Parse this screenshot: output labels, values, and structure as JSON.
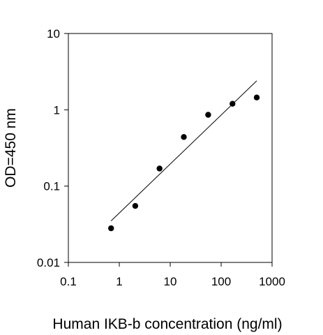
{
  "chart_data": {
    "type": "scatter",
    "title": "",
    "xlabel": "Human IKB-b concentration (ng/ml)",
    "ylabel": "OD=450 nm",
    "x_scale": "log",
    "y_scale": "log",
    "xlim": [
      0.1,
      1000
    ],
    "ylim": [
      0.01,
      10
    ],
    "x_ticks": [
      0.1,
      1,
      10,
      100,
      1000
    ],
    "x_tick_labels": [
      "0.1",
      "1",
      "10",
      "100",
      "1000"
    ],
    "y_ticks": [
      0.01,
      0.1,
      1,
      10
    ],
    "y_tick_labels": [
      "0.01",
      "0.1",
      "1",
      "10"
    ],
    "grid": false,
    "legend": "none",
    "colors": {
      "points": "#000000",
      "fit_line": "#000000",
      "axes": "#000000"
    },
    "series": [
      {
        "x": [
          0.69,
          2.06,
          6.17,
          18.5,
          55.6,
          167,
          500
        ],
        "y": [
          0.028,
          0.055,
          0.17,
          0.44,
          0.86,
          1.2,
          1.45
        ]
      }
    ],
    "fit_line": {
      "x": [
        0.69,
        500
      ],
      "y": [
        0.035,
        2.4
      ]
    }
  }
}
